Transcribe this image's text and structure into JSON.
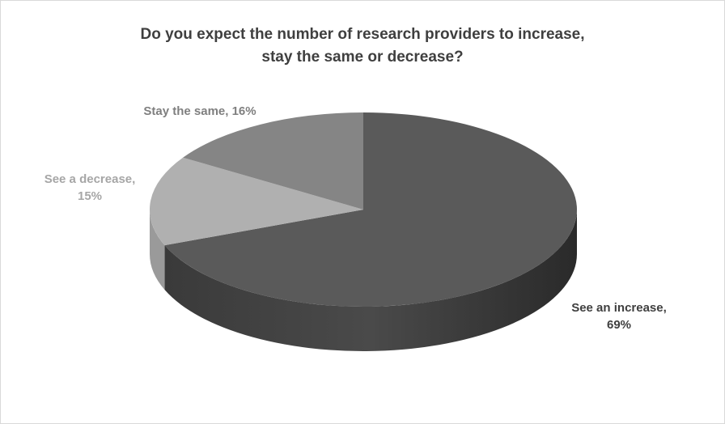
{
  "chart_data": {
    "type": "pie",
    "title_line1": "Do you expect the number of research providers to increase,",
    "title_line2": "stay the same or decrease?",
    "slices": [
      {
        "name": "See an increase",
        "value": 69,
        "label_line1": "See an increase,",
        "label_line2": "69%",
        "color": "#5a5a5a",
        "label_color": "#3f3f3f"
      },
      {
        "name": "See a decrease",
        "value": 15,
        "label_line1": "See a decrease,",
        "label_line2": "15%",
        "color": "#b0b0b0",
        "label_color": "#a6a6a6"
      },
      {
        "name": "Stay the same",
        "value": 16,
        "label_line1": "Stay the same, 16%",
        "label_line2": "",
        "color": "#858585",
        "label_color": "#7f7f7f"
      }
    ],
    "style": "3d-pie"
  }
}
